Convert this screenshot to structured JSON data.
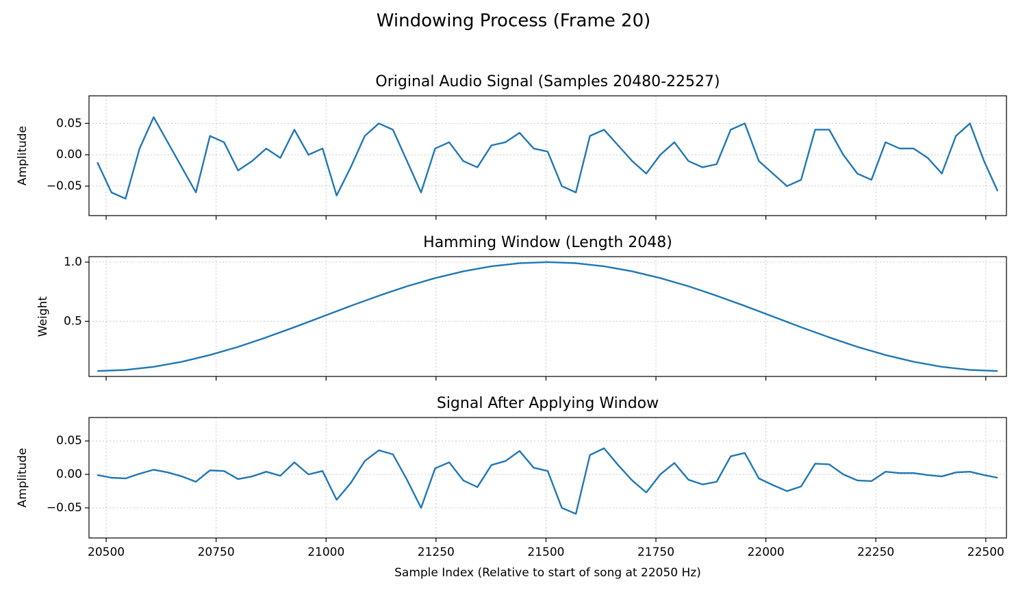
{
  "title": "Windowing Process (Frame 20)",
  "chart_data": [
    {
      "type": "line",
      "title": "Original Audio Signal (Samples 20480-22527)",
      "ylabel": "Amplitude",
      "x": [
        20480,
        20512,
        20544,
        20576,
        20608,
        20640,
        20672,
        20704,
        20736,
        20768,
        20800,
        20832,
        20864,
        20896,
        20928,
        20960,
        20992,
        21024,
        21056,
        21088,
        21120,
        21152,
        21184,
        21216,
        21248,
        21280,
        21312,
        21344,
        21376,
        21408,
        21440,
        21472,
        21504,
        21536,
        21568,
        21600,
        21632,
        21664,
        21696,
        21728,
        21760,
        21792,
        21824,
        21856,
        21888,
        21920,
        21952,
        21984,
        22016,
        22048,
        22080,
        22112,
        22144,
        22176,
        22208,
        22240,
        22272,
        22304,
        22336,
        22368,
        22400,
        22432,
        22464,
        22496,
        22527
      ],
      "values": [
        -0.012,
        -0.06,
        -0.07,
        0.01,
        0.06,
        0.02,
        -0.02,
        -0.06,
        0.03,
        0.02,
        -0.025,
        -0.01,
        0.01,
        -0.005,
        0.04,
        0.0,
        0.01,
        -0.065,
        -0.02,
        0.03,
        0.05,
        0.04,
        -0.01,
        -0.06,
        0.01,
        0.02,
        -0.01,
        -0.02,
        0.015,
        0.02,
        0.035,
        0.01,
        0.005,
        -0.05,
        -0.06,
        0.03,
        0.04,
        0.015,
        -0.01,
        -0.03,
        0.0,
        0.02,
        -0.01,
        -0.02,
        -0.015,
        0.04,
        0.05,
        -0.01,
        -0.03,
        -0.05,
        -0.04,
        0.04,
        0.04,
        0.0,
        -0.03,
        -0.04,
        0.02,
        0.01,
        0.01,
        -0.005,
        -0.03,
        0.03,
        0.05,
        -0.01,
        -0.058
      ],
      "color": "#1f77b4",
      "xlim": [
        20461,
        22547
      ],
      "ylim": [
        -0.097,
        0.094
      ],
      "xticks": [
        20500,
        20750,
        21000,
        21250,
        21500,
        21750,
        22000,
        22250,
        22500
      ],
      "yticks": [
        {
          "value": -0.05,
          "label": "−0.05"
        },
        {
          "value": 0,
          "label": "0.00"
        },
        0.05
      ],
      "grid": true
    },
    {
      "type": "line",
      "title": "Hamming Window (Length 2048)",
      "ylabel": "Weight",
      "x": [
        20480,
        20544,
        20608,
        20672,
        20736,
        20800,
        20864,
        20928,
        20992,
        21056,
        21120,
        21184,
        21248,
        21312,
        21376,
        21440,
        21504,
        21568,
        21632,
        21696,
        21760,
        21824,
        21888,
        21952,
        22016,
        22080,
        22144,
        22208,
        22272,
        22336,
        22400,
        22464,
        22527
      ],
      "values": [
        0.08,
        0.089,
        0.115,
        0.158,
        0.215,
        0.284,
        0.364,
        0.45,
        0.54,
        0.63,
        0.716,
        0.796,
        0.865,
        0.922,
        0.965,
        0.991,
        1.0,
        0.991,
        0.965,
        0.922,
        0.865,
        0.796,
        0.716,
        0.63,
        0.54,
        0.45,
        0.364,
        0.284,
        0.215,
        0.158,
        0.115,
        0.089,
        0.08
      ],
      "color": "#1f77b4",
      "xlim": [
        20461,
        22547
      ],
      "ylim": [
        0.034,
        1.046
      ],
      "xticks": [
        20500,
        20750,
        21000,
        21250,
        21500,
        21750,
        22000,
        22250,
        22500
      ],
      "yticks": [
        0.5,
        {
          "value": 1,
          "label": "1.0"
        }
      ],
      "grid": true
    },
    {
      "type": "line",
      "title": "Signal After Applying Window",
      "ylabel": "Amplitude",
      "xlabel": "Sample Index (Relative to start of song at 22050 Hz)",
      "x": [
        20480,
        20512,
        20544,
        20576,
        20608,
        20640,
        20672,
        20704,
        20736,
        20768,
        20800,
        20832,
        20864,
        20896,
        20928,
        20960,
        20992,
        21024,
        21056,
        21088,
        21120,
        21152,
        21184,
        21216,
        21248,
        21280,
        21312,
        21344,
        21376,
        21408,
        21440,
        21472,
        21504,
        21536,
        21568,
        21600,
        21632,
        21664,
        21696,
        21728,
        21760,
        21792,
        21824,
        21856,
        21888,
        21920,
        21952,
        21984,
        22016,
        22048,
        22080,
        22112,
        22144,
        22176,
        22208,
        22240,
        22272,
        22304,
        22336,
        22368,
        22400,
        22432,
        22464,
        22496,
        22527
      ],
      "values": [
        -0.001,
        -0.005,
        -0.006,
        0.001,
        0.007,
        0.003,
        -0.003,
        -0.011,
        0.006,
        0.005,
        -0.007,
        -0.003,
        0.004,
        -0.002,
        0.018,
        0.0,
        0.005,
        -0.038,
        -0.013,
        0.02,
        0.036,
        0.03,
        -0.008,
        -0.05,
        0.009,
        0.018,
        -0.009,
        -0.019,
        0.014,
        0.02,
        0.035,
        0.01,
        0.005,
        -0.05,
        -0.059,
        0.029,
        0.039,
        0.014,
        -0.009,
        -0.027,
        0.0,
        0.017,
        -0.008,
        -0.015,
        -0.011,
        0.027,
        0.032,
        -0.006,
        -0.016,
        -0.025,
        -0.018,
        0.016,
        0.015,
        0.0,
        -0.009,
        -0.01,
        0.004,
        0.002,
        0.002,
        -0.001,
        -0.003,
        0.003,
        0.004,
        -0.001,
        -0.005
      ],
      "color": "#1f77b4",
      "xlim": [
        20461,
        22547
      ],
      "ylim": [
        -0.095,
        0.085
      ],
      "xticks": [
        20500,
        20750,
        21000,
        21250,
        21500,
        21750,
        22000,
        22250,
        22500
      ],
      "yticks": [
        {
          "value": -0.05,
          "label": "−0.05"
        },
        {
          "value": 0,
          "label": "0.00"
        },
        0.05
      ],
      "grid": true
    }
  ]
}
